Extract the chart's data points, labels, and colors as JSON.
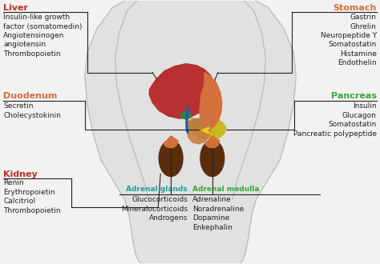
{
  "bg_color": "#f2f2f2",
  "body_fill_color": "#e0e0e0",
  "body_line_color": "#c0c0c0",
  "liver_color": "#b83030",
  "stomach_color": "#d4703a",
  "kidney_color": "#5a2d0c",
  "gallbladder_color": "#3a7d44",
  "pancreas_color": "#c8b820",
  "duodenum_color": "#c87840",
  "adrenal_color": "#d4703a",
  "bile_duct_color": "#2060a0",
  "arrow_color": "#e8d020",
  "title_liver_color": "#c03020",
  "title_stomach_color": "#d4703a",
  "title_duodenum_color": "#d4703a",
  "title_kidney_color": "#c03020",
  "title_pancreas_color": "#38a838",
  "title_adrenal_glands_color": "#20a0a0",
  "title_adrenal_medulla_color": "#38a838",
  "line_color": "#222222",
  "text_color": "#222222",
  "liver_label": "Liver",
  "liver_items": [
    "Insulin-like growth",
    "factor (somatomedin)",
    "Angiotensinogen",
    "angiotensin",
    "Thrombopoietin"
  ],
  "stomach_label": "Stomach",
  "stomach_items": [
    "Gastrin",
    "Ghrelin",
    "Neuropeptide Y",
    "Somatostatin",
    "Histamine",
    "Endothelin"
  ],
  "duodenum_label": "Duodenum",
  "duodenum_items": [
    "Secretin",
    "Cholecystokinin"
  ],
  "kidney_label": "Kidney",
  "kidney_items": [
    "Renin",
    "Erythropoietin",
    "Calcitriol",
    "Thrombopoietin"
  ],
  "pancreas_label": "Pancreas",
  "pancreas_items": [
    "Insulin",
    "Glucagon",
    "Somatostatin",
    "Pancreatic polypeptide"
  ],
  "adrenal_glands_label": "Adrenal glands",
  "adrenal_glands_items": [
    "Glucocorticoids",
    "Mineralocorticoids",
    "Androgens"
  ],
  "adrenal_medulla_label": "Adrenal medulla",
  "adrenal_medulla_items": [
    "Adrenaline",
    "Noradrenaline",
    "Dopamine",
    "Enkephalin"
  ]
}
